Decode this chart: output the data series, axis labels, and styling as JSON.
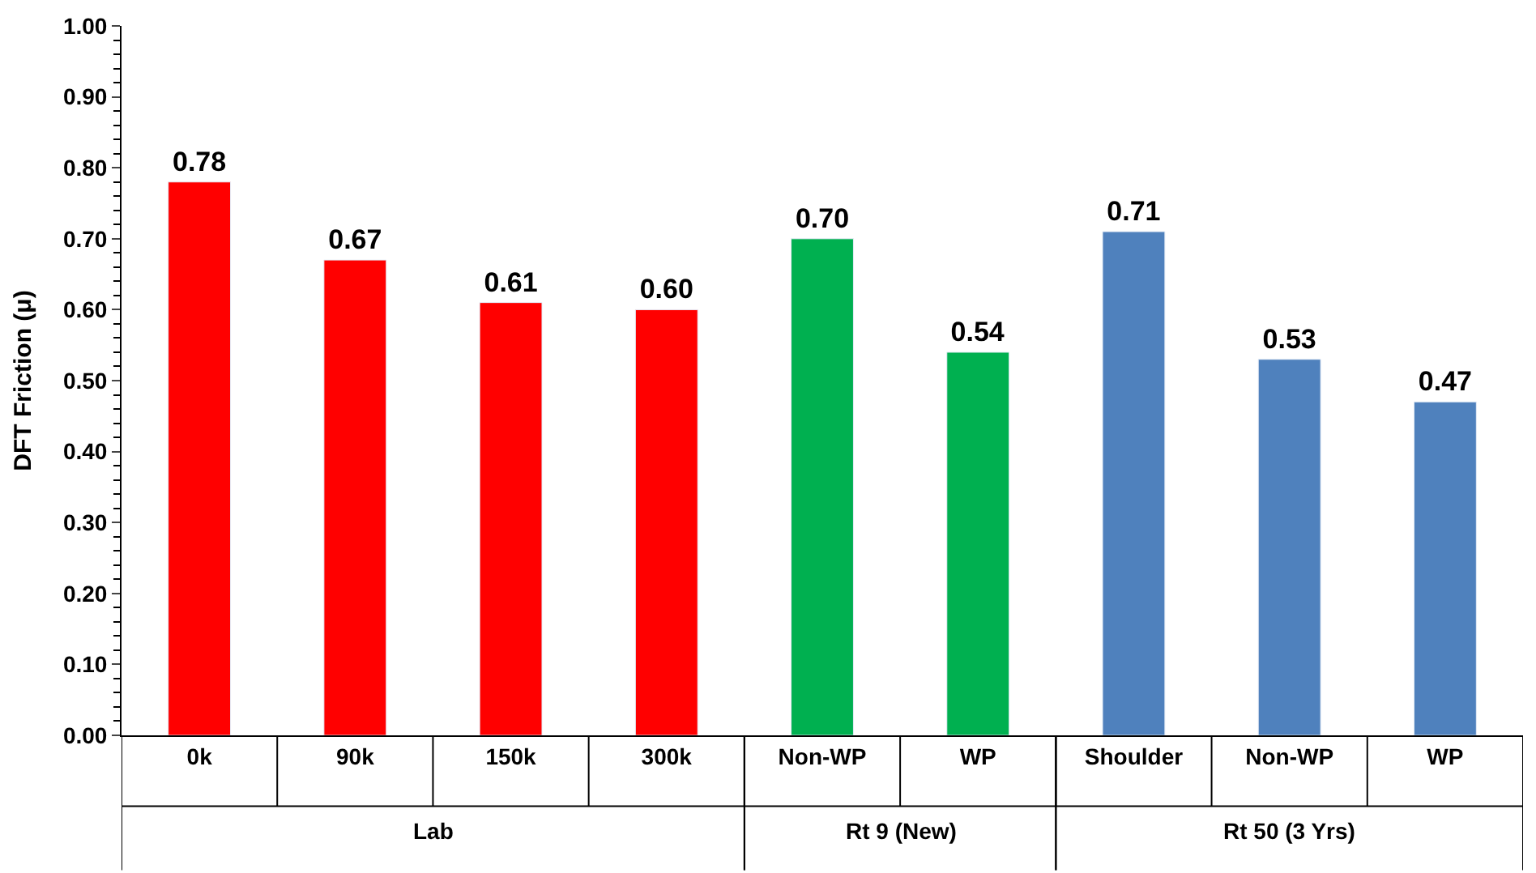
{
  "chart_data": {
    "type": "bar",
    "ylabel": "DFT Friction (μ)",
    "categories": [
      "0k",
      "90k",
      "150k",
      "300k",
      "Non-WP",
      "WP",
      "Shoulder",
      "Non-WP",
      "WP"
    ],
    "series": [
      {
        "color": "#ff0000",
        "values": [
          0.78,
          0.67,
          0.61,
          0.6,
          null,
          null,
          null,
          null,
          null
        ]
      },
      {
        "color": "#00b050",
        "values": [
          null,
          null,
          null,
          null,
          0.7,
          0.54,
          null,
          null,
          null
        ]
      },
      {
        "color": "#4f81bd",
        "values": [
          null,
          null,
          null,
          null,
          null,
          null,
          0.71,
          0.53,
          0.47
        ]
      }
    ],
    "ylim": [
      0,
      1
    ],
    "yticks": [
      {
        "value": 0,
        "label": "0.00"
      },
      {
        "value": 0.1,
        "label": "0.10"
      },
      {
        "value": 0.2,
        "label": "0.20"
      },
      {
        "value": 0.3,
        "label": "0.30"
      },
      {
        "value": 0.4,
        "label": "0.40"
      },
      {
        "value": 0.5,
        "label": "0.50"
      },
      {
        "value": 0.6,
        "label": "0.60"
      },
      {
        "value": 0.7,
        "label": "0.70"
      },
      {
        "value": 0.8,
        "label": "0.80"
      },
      {
        "value": 0.9,
        "label": "0.90"
      },
      {
        "value": 1,
        "label": "1.00"
      }
    ],
    "value_labels": [
      "0.78",
      "0.67",
      "0.61",
      "0.60",
      "0.70",
      "0.54",
      "0.71",
      "0.53",
      "0.47"
    ],
    "annotations": [
      "Lab",
      "Rt 9 (New)",
      "Rt 50 (3 Yrs)"
    ],
    "grid": false,
    "legend": false
  }
}
